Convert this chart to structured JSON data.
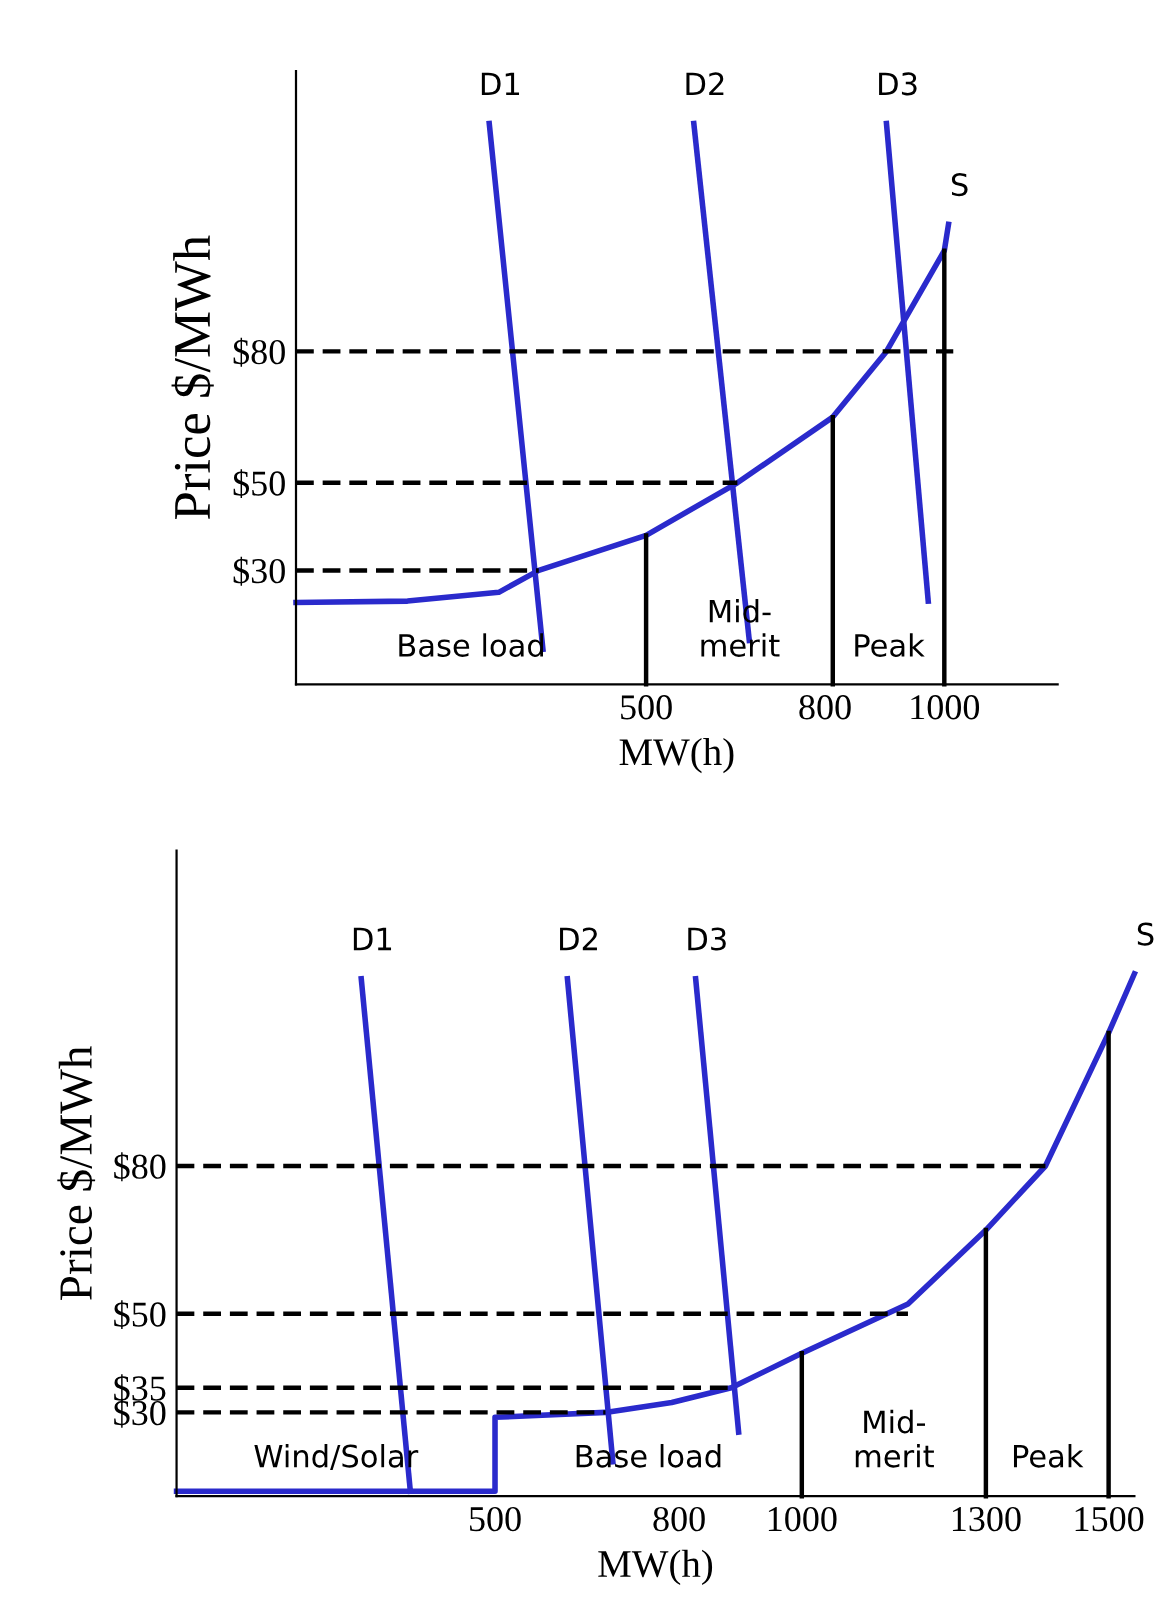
{
  "chart_data": [
    {
      "type": "line",
      "xlabel": "MW(h)",
      "ylabel": "Price $/MWh",
      "xlim": [
        -87,
        1190
      ],
      "ylim": [
        4,
        144
      ],
      "xticks": [
        500,
        800,
        1000
      ],
      "yticks": [
        {
          "value": 30,
          "label": "$30"
        },
        {
          "value": 50,
          "label": "$50"
        },
        {
          "value": 80,
          "label": "$80"
        }
      ],
      "grid": false,
      "legend": false,
      "marker": "none",
      "series": [
        {
          "name": "S",
          "color": "#2a2acc",
          "x": [
            -87,
            100,
            253,
            320,
            500,
            653,
            813,
            903,
            1000,
            1007
          ],
          "values": [
            22.7,
            23,
            25,
            30,
            38,
            50,
            65,
            80,
            103,
            109
          ]
        },
        {
          "name": "D1",
          "color": "#2a2acc",
          "x": [
            237,
            327
          ],
          "values": [
            132,
            12
          ]
        },
        {
          "name": "D2",
          "color": "#2a2acc",
          "x": [
            580,
            673
          ],
          "values": [
            132,
            14
          ]
        },
        {
          "name": "D3",
          "color": "#2a2acc",
          "x": [
            903,
            973
          ],
          "values": [
            132,
            23
          ]
        },
        {
          "color": "#000000",
          "x": [
            500,
            500
          ],
          "values": [
            4,
            38
          ]
        },
        {
          "color": "#000000",
          "x": [
            813,
            813
          ],
          "values": [
            4,
            65
          ]
        },
        {
          "color": "#000000",
          "x": [
            1000,
            1000
          ],
          "values": [
            4,
            103
          ]
        },
        {
          "color": "#000000",
          "line_style": "dashed",
          "x": [
            -87,
            1015
          ],
          "values": [
            80,
            80
          ]
        },
        {
          "color": "#000000",
          "line_style": "dashed",
          "x": [
            -87,
            653
          ],
          "values": [
            50,
            50
          ]
        },
        {
          "color": "#000000",
          "line_style": "dashed",
          "x": [
            -87,
            320
          ],
          "values": [
            30,
            30
          ]
        }
      ],
      "annotations": [
        "Base load",
        "Mid-\nmerit",
        "Peak"
      ]
    },
    {
      "type": "line",
      "xlabel": "MW(h)",
      "ylabel": "Price $/MWh",
      "xlim": [
        -19,
        1542
      ],
      "ylim": [
        13,
        144
      ],
      "xticks": [
        500,
        800,
        1000,
        1300,
        1500
      ],
      "yticks": [
        {
          "value": 30,
          "label": "$30"
        },
        {
          "value": 35,
          "label": "$35"
        },
        {
          "value": 50,
          "label": "$50"
        },
        {
          "value": 80,
          "label": "$80"
        }
      ],
      "grid": false,
      "legend": false,
      "marker": "none",
      "series": [
        {
          "name": "S",
          "color": "#2a2acc",
          "x": [
            -19,
            500,
            500,
            680,
            788,
            885,
            1000,
            1173,
            1300,
            1397,
            1500,
            1542
          ],
          "values": [
            14,
            14,
            29,
            30,
            32,
            35,
            42,
            52,
            67,
            80,
            107,
            119
          ]
        },
        {
          "name": "D1",
          "color": "#2a2acc",
          "x": [
            282,
            362
          ],
          "values": [
            118,
            14
          ]
        },
        {
          "name": "D2",
          "color": "#2a2acc",
          "x": [
            618,
            692
          ],
          "values": [
            118,
            20
          ]
        },
        {
          "name": "D3",
          "color": "#2a2acc",
          "x": [
            827,
            897
          ],
          "values": [
            118,
            26
          ]
        },
        {
          "color": "#000000",
          "x": [
            1000,
            1000
          ],
          "values": [
            13,
            42
          ]
        },
        {
          "color": "#000000",
          "x": [
            1300,
            1300
          ],
          "values": [
            13,
            67
          ]
        },
        {
          "color": "#000000",
          "x": [
            1500,
            1500
          ],
          "values": [
            13,
            107
          ]
        },
        {
          "color": "#000000",
          "line_style": "dashed",
          "x": [
            -19,
            1397
          ],
          "values": [
            80,
            80
          ]
        },
        {
          "color": "#000000",
          "line_style": "dashed",
          "x": [
            -19,
            1173
          ],
          "values": [
            50,
            50
          ]
        },
        {
          "color": "#000000",
          "line_style": "dashed",
          "x": [
            -19,
            885
          ],
          "values": [
            35,
            35
          ]
        },
        {
          "color": "#000000",
          "line_style": "dashed",
          "x": [
            -19,
            680
          ],
          "values": [
            30,
            30
          ]
        }
      ],
      "annotations": [
        "Wind/Solar",
        "Base load",
        "Mid-\nmerit",
        "Peak"
      ]
    }
  ]
}
